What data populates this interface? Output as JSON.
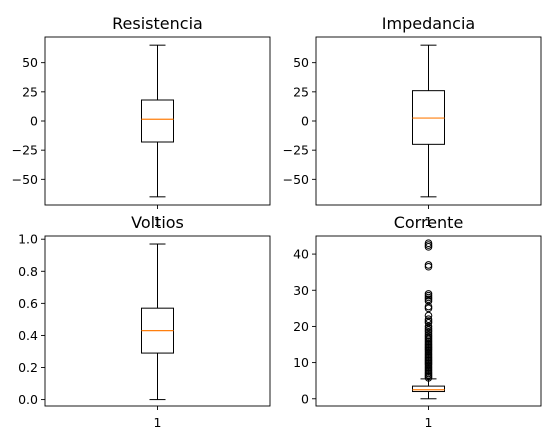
{
  "chart_data": [
    {
      "type": "box",
      "title": "Resistencia",
      "categories": [
        "1"
      ],
      "ylim": [
        -72,
        72
      ],
      "yticks": [
        {
          "v": 50,
          "t": "50"
        },
        {
          "v": 25,
          "t": "25"
        },
        {
          "v": 0,
          "t": "0"
        },
        {
          "v": -25,
          "t": "−25"
        },
        {
          "v": -50,
          "t": "−50"
        }
      ],
      "box": {
        "whisker_low": -65,
        "q1": -18,
        "median": 1.5,
        "q3": 18,
        "whisker_high": 65
      },
      "fliers": []
    },
    {
      "type": "box",
      "title": "Impedancia",
      "categories": [
        "1"
      ],
      "ylim": [
        -72,
        72
      ],
      "yticks": [
        {
          "v": 50,
          "t": "50"
        },
        {
          "v": 25,
          "t": "25"
        },
        {
          "v": 0,
          "t": "0"
        },
        {
          "v": -25,
          "t": "−25"
        },
        {
          "v": -50,
          "t": "−50"
        }
      ],
      "box": {
        "whisker_low": -65,
        "q1": -20,
        "median": 2.5,
        "q3": 26,
        "whisker_high": 65
      },
      "fliers": []
    },
    {
      "type": "box",
      "title": "Voltios",
      "categories": [
        "1"
      ],
      "ylim": [
        -0.04,
        1.02
      ],
      "yticks": [
        {
          "v": 1.0,
          "t": "1.0"
        },
        {
          "v": 0.8,
          "t": "0.8"
        },
        {
          "v": 0.6,
          "t": "0.6"
        },
        {
          "v": 0.4,
          "t": "0.4"
        },
        {
          "v": 0.2,
          "t": "0.2"
        },
        {
          "v": 0.0,
          "t": "0.0"
        }
      ],
      "box": {
        "whisker_low": 0.0,
        "q1": 0.29,
        "median": 0.43,
        "q3": 0.57,
        "whisker_high": 0.97
      },
      "fliers": []
    },
    {
      "type": "box",
      "title": "Corrente",
      "categories": [
        "1"
      ],
      "ylim": [
        -2,
        45
      ],
      "yticks": [
        {
          "v": 40,
          "t": "40"
        },
        {
          "v": 30,
          "t": "30"
        },
        {
          "v": 20,
          "t": "20"
        },
        {
          "v": 10,
          "t": "10"
        },
        {
          "v": 0,
          "t": "0"
        }
      ],
      "box": {
        "whisker_low": 0,
        "q1": 2.0,
        "median": 2.5,
        "q3": 3.5,
        "whisker_high": 5.5
      },
      "fliers": [
        5.8,
        6.2,
        6.6,
        7.0,
        7.4,
        7.8,
        8.2,
        8.6,
        9.0,
        9.4,
        9.8,
        10.2,
        10.6,
        11.0,
        11.4,
        11.8,
        12.2,
        12.6,
        13.0,
        13.4,
        13.8,
        14.2,
        14.6,
        15.0,
        15.4,
        15.8,
        16.2,
        16.6,
        17.0,
        17.5,
        18.0,
        18.5,
        19.0,
        19.5,
        20.0,
        21.0,
        21.5,
        22.0,
        23.0,
        25.0,
        25.5,
        27.0,
        27.5,
        28.0,
        28.5,
        29.0,
        36.5,
        37.0,
        42.0,
        42.5,
        43.0
      ]
    }
  ]
}
